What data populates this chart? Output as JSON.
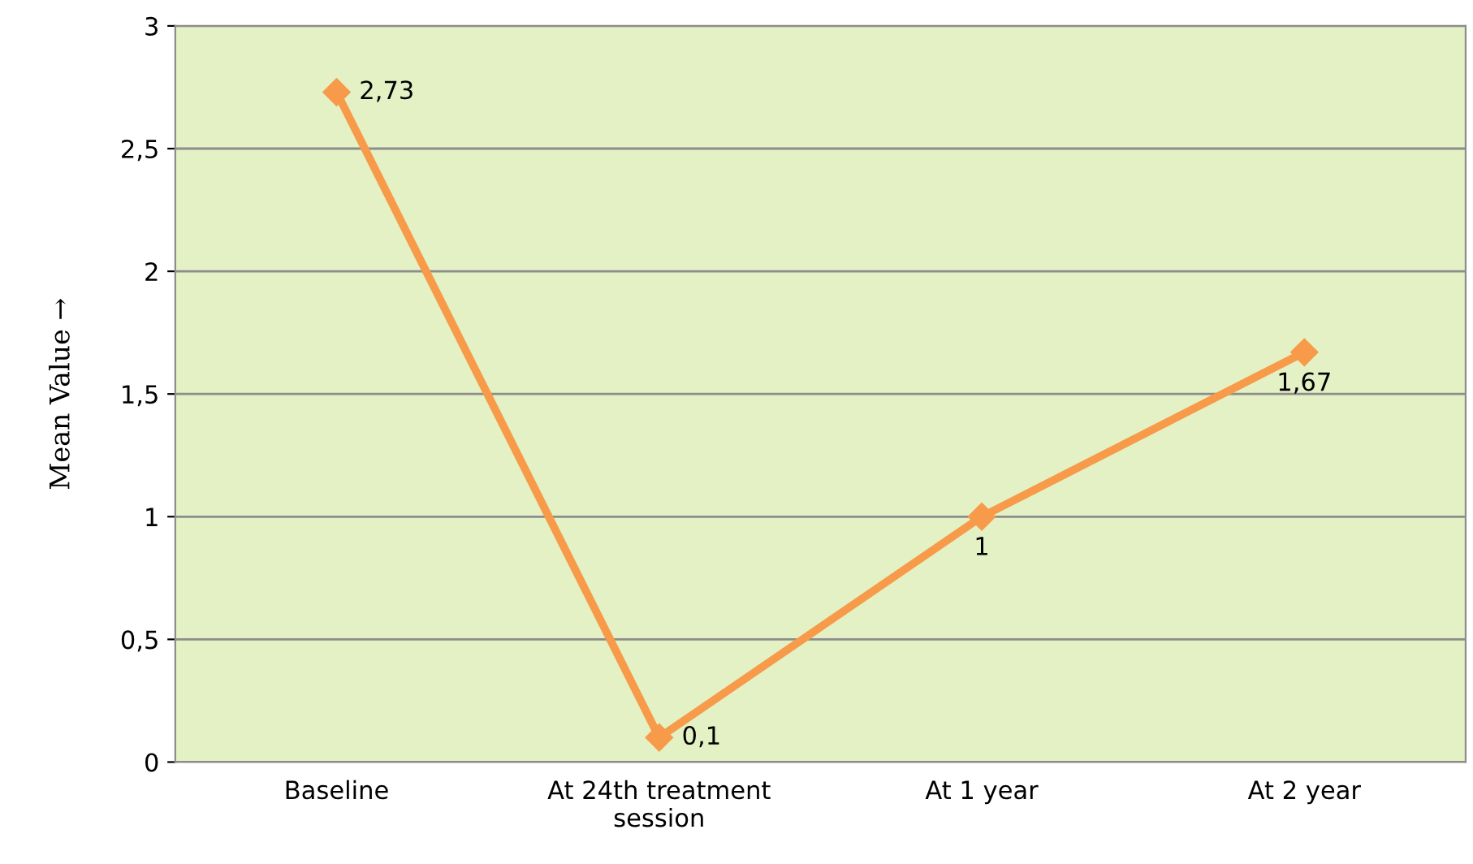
{
  "chart_data": {
    "type": "line",
    "ylabel": "Mean Value →",
    "categories": [
      "Baseline",
      "At 24th treatment\nsession",
      "At 1 year",
      "At 2 year"
    ],
    "series": [
      {
        "color": "#f79a4a",
        "values": [
          2.73,
          0.1,
          1,
          1.67
        ],
        "value_labels": [
          "2,73",
          "0,1",
          "1",
          "1,67"
        ]
      }
    ],
    "ylim": [
      0,
      3
    ],
    "yticks": [
      0,
      {
        "value": 0.5,
        "label": "0,5"
      },
      1,
      {
        "value": 1.5,
        "label": "1,5"
      },
      2,
      {
        "value": 2.5,
        "label": "2,5"
      },
      3
    ],
    "grid": "y",
    "marker": "diamond",
    "line_style": "solid",
    "legend": false
  }
}
